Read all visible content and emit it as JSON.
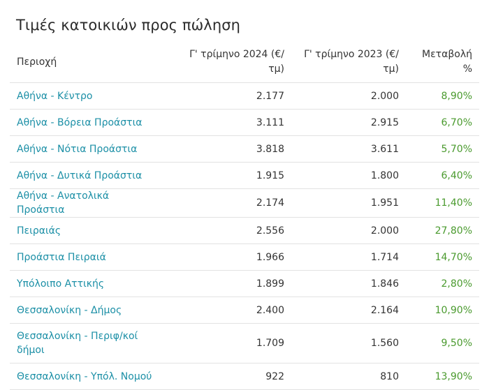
{
  "title": "Τιμές κατοικιών προς πώληση",
  "table": {
    "headers": [
      "Περιοχή",
      "Γ' τρίμηνο 2024 (€/ τμ)",
      "Γ' τρίμηνο 2023 (€/ τμ)",
      "Μεταβολή %"
    ],
    "rows": [
      {
        "area": "Αθήνα - Κέντρο",
        "q3_2024": "2.177",
        "q3_2023": "2.000",
        "change": "8,90%"
      },
      {
        "area": "Αθήνα - Βόρεια Προάστια",
        "q3_2024": "3.111",
        "q3_2023": "2.915",
        "change": "6,70%"
      },
      {
        "area": "Αθήνα - Νότια Προάστια",
        "q3_2024": "3.818",
        "q3_2023": "3.611",
        "change": "5,70%"
      },
      {
        "area": "Αθήνα - Δυτικά Προάστια",
        "q3_2024": "1.915",
        "q3_2023": "1.800",
        "change": "6,40%"
      },
      {
        "area": "Αθήνα - Ανατολικά Προάστια",
        "q3_2024": "2.174",
        "q3_2023": "1.951",
        "change": "11,40%"
      },
      {
        "area": "Πειραιάς",
        "q3_2024": "2.556",
        "q3_2023": "2.000",
        "change": "27,80%"
      },
      {
        "area": "Προάστια Πειραιά",
        "q3_2024": "1.966",
        "q3_2023": "1.714",
        "change": "14,70%"
      },
      {
        "area": "Υπόλοιπο Αττικής",
        "q3_2024": "1.899",
        "q3_2023": "1.846",
        "change": "2,80%"
      },
      {
        "area": "Θεσσαλονίκη - Δήμος",
        "q3_2024": "2.400",
        "q3_2023": "2.164",
        "change": "10,90%"
      },
      {
        "area": "Θεσσαλονίκη - Περιφ/κοί δήμοι",
        "q3_2024": "1.709",
        "q3_2023": "1.560",
        "change": "9,50%"
      },
      {
        "area": "Θεσσαλονίκη - Υπόλ. Νομού",
        "q3_2024": "922",
        "q3_2023": "810",
        "change": "13,90%"
      }
    ]
  },
  "colors": {
    "link": "#1b8fa6",
    "change": "#4a9a2e",
    "text": "#333333",
    "border": "#e2e2e2"
  }
}
